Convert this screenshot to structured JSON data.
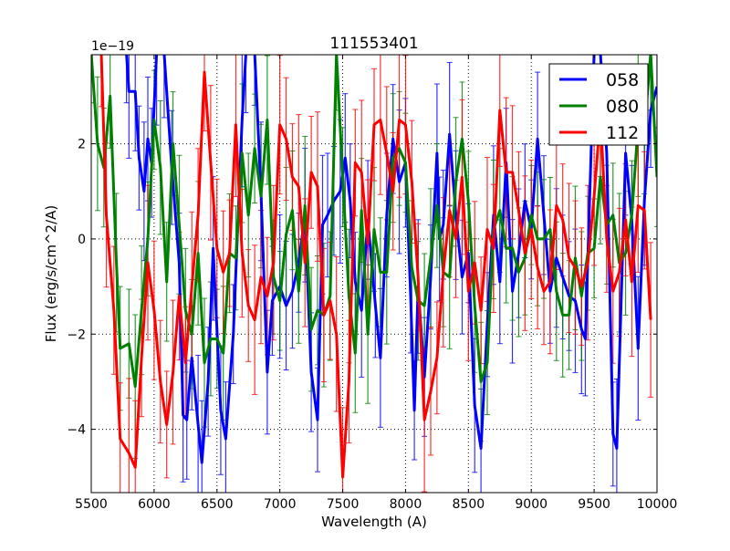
{
  "chart_data": {
    "type": "line",
    "title": "111553401",
    "xlabel": "Wavelength (A)",
    "ylabel": "Flux (erg/s/cm^2/A)",
    "y_offset_label": "1e−19",
    "xlim": [
      5500,
      10000
    ],
    "ylim": [
      -5.33,
      3.87
    ],
    "xticks": [
      "5500",
      "6000",
      "6500",
      "7000",
      "7500",
      "8000",
      "8500",
      "9000",
      "9500",
      "10000"
    ],
    "xtick_values": [
      5500,
      6000,
      6500,
      7000,
      7500,
      8000,
      8500,
      9000,
      9500,
      10000
    ],
    "yticks": [
      "−4",
      "−2",
      "0",
      "2"
    ],
    "ytick_values": [
      -4,
      -2,
      0,
      2
    ],
    "grid": true,
    "legend_position": "top-right",
    "series": [
      {
        "name": "058",
        "color": "#0000ff",
        "yerr": 1.3,
        "x": [
          5780,
          5800,
          5850,
          5880,
          5920,
          5950,
          5980,
          6020,
          6080,
          6140,
          6200,
          6230,
          6260,
          6300,
          6350,
          6380,
          6430,
          6470,
          6530,
          6570,
          6630,
          6700,
          6730,
          6800,
          6850,
          6900,
          6940,
          7000,
          7050,
          7100,
          7150,
          7200,
          7250,
          7300,
          7340,
          7380,
          7430,
          7480,
          7520,
          7560,
          7600,
          7650,
          7700,
          7760,
          7800,
          7850,
          7900,
          7950,
          8000,
          8040,
          8070,
          8100,
          8150,
          8200,
          8250,
          8270,
          8300,
          8350,
          8400,
          8450,
          8500,
          8550,
          8600,
          8650,
          8700,
          8750,
          8800,
          8850,
          8900,
          8950,
          9000,
          9050,
          9100,
          9150,
          9200,
          9250,
          9300,
          9350,
          9400,
          9430,
          9500,
          9550,
          9600,
          9650,
          9680,
          9750,
          9800,
          9850,
          9900,
          9950,
          10000
        ],
        "y": [
          3.9,
          3.1,
          3.1,
          1.7,
          1.0,
          2.1,
          1.6,
          3.9,
          3.9,
          1.5,
          -0.5,
          -3.7,
          -3.8,
          -2.5,
          -3.9,
          -4.7,
          -3.0,
          -0.2,
          -3.6,
          -4.2,
          -2.0,
          2.5,
          3.9,
          3.9,
          1.0,
          -2.8,
          -1.3,
          -1.0,
          -1.4,
          -1.1,
          -0.5,
          0.5,
          -2.8,
          -3.8,
          0.3,
          0.5,
          0.8,
          1.0,
          1.7,
          0.8,
          -0.9,
          -1.5,
          0.4,
          -1.4,
          -2.5,
          0.5,
          2.1,
          1.2,
          1.6,
          -1.2,
          -3.6,
          -1.0,
          -2.9,
          -0.8,
          1.8,
          0.0,
          0.3,
          2.2,
          0.5,
          -0.8,
          -0.3,
          -3.5,
          -4.4,
          -1.8,
          0.5,
          -0.9,
          1.6,
          -1.1,
          -0.3,
          0.8,
          0.2,
          2.1,
          0.5,
          -1.1,
          -0.4,
          -0.8,
          -1.2,
          -1.3,
          -1.9,
          -2.1,
          3.9,
          3.9,
          1.8,
          -4.1,
          -4.4,
          1.8,
          0.4,
          -2.3,
          0.8,
          2.7,
          3.2
        ]
      },
      {
        "name": "080",
        "color": "#008000",
        "yerr": 1.3,
        "x": [
          5500,
          5550,
          5600,
          5650,
          5700,
          5730,
          5800,
          5850,
          5900,
          5950,
          6000,
          6050,
          6100,
          6150,
          6200,
          6250,
          6300,
          6350,
          6400,
          6450,
          6500,
          6550,
          6600,
          6650,
          6700,
          6750,
          6800,
          6850,
          6900,
          6950,
          7000,
          7050,
          7100,
          7150,
          7200,
          7250,
          7300,
          7350,
          7400,
          7450,
          7500,
          7550,
          7600,
          7650,
          7700,
          7750,
          7800,
          7850,
          7900,
          7950,
          8000,
          8050,
          8100,
          8150,
          8200,
          8250,
          8300,
          8350,
          8400,
          8450,
          8500,
          8550,
          8600,
          8650,
          8700,
          8750,
          8800,
          8850,
          8900,
          8950,
          9000,
          9050,
          9100,
          9150,
          9200,
          9250,
          9300,
          9350,
          9400,
          9450,
          9500,
          9550,
          9600,
          9650,
          9700,
          9750,
          9800,
          9850,
          9900,
          9950,
          10000
        ],
        "y": [
          3.9,
          2.0,
          1.5,
          3.0,
          -0.5,
          -2.3,
          -2.2,
          -3.1,
          -1.5,
          0.0,
          2.5,
          1.5,
          -0.9,
          2.0,
          0.3,
          -1.5,
          -2.0,
          -0.3,
          -2.6,
          -2.1,
          -2.1,
          -2.4,
          -0.3,
          -0.4,
          1.8,
          0.5,
          1.9,
          0.9,
          2.5,
          -0.8,
          -1.3,
          0.1,
          0.6,
          -1.1,
          0.7,
          -1.9,
          -1.5,
          -1.6,
          -1.2,
          3.9,
          1.3,
          -1.2,
          -2.4,
          0.6,
          -2.0,
          0.2,
          -0.7,
          -0.7,
          1.7,
          1.9,
          1.6,
          -0.6,
          -1.3,
          -1.4,
          -0.4,
          0.7,
          -0.7,
          -0.8,
          1.2,
          2.1,
          0.8,
          -1.4,
          -3.0,
          -2.6,
          0.2,
          0.6,
          -0.2,
          -0.2,
          -0.7,
          -0.4,
          0.5,
          0.0,
          0.0,
          0.2,
          -1.1,
          -1.6,
          -1.6,
          -0.4,
          -1.2,
          -0.3,
          -0.2,
          1.3,
          0.3,
          0.5,
          -0.5,
          -0.3,
          0.5,
          2.4,
          2.3,
          3.9,
          1.3
        ]
      },
      {
        "name": "112",
        "color": "#ff0000",
        "yerr": 1.4,
        "x": [
          5580,
          5620,
          5680,
          5730,
          5800,
          5850,
          5900,
          5950,
          6000,
          6050,
          6100,
          6150,
          6200,
          6250,
          6300,
          6350,
          6400,
          6450,
          6500,
          6550,
          6600,
          6650,
          6700,
          6750,
          6800,
          6850,
          6900,
          6950,
          7000,
          7050,
          7100,
          7150,
          7200,
          7250,
          7300,
          7350,
          7400,
          7450,
          7500,
          7550,
          7600,
          7650,
          7700,
          7750,
          7800,
          7850,
          7900,
          7950,
          8000,
          8050,
          8100,
          8150,
          8200,
          8250,
          8300,
          8350,
          8400,
          8450,
          8500,
          8550,
          8600,
          8650,
          8700,
          8750,
          8800,
          8850,
          8900,
          8950,
          9000,
          9050,
          9100,
          9150,
          9200,
          9250,
          9300,
          9350,
          9400,
          9450,
          9500,
          9550,
          9600,
          9650,
          9700,
          9750,
          9800,
          9850,
          9900,
          9950
        ],
        "y": [
          3.9,
          0.5,
          -1.5,
          -4.2,
          -4.5,
          -4.8,
          -2.5,
          -0.5,
          -1.5,
          -3.0,
          -3.9,
          -2.8,
          -1.2,
          -2.6,
          -1.0,
          0.5,
          3.5,
          1.6,
          -0.2,
          -0.7,
          -0.3,
          2.4,
          -0.3,
          -1.4,
          -1.7,
          -0.8,
          -1.2,
          -0.5,
          2.4,
          2.1,
          1.3,
          1.1,
          -0.5,
          1.4,
          1.1,
          -1.6,
          -1.3,
          -2.0,
          -5.0,
          -3.0,
          1.6,
          1.4,
          -0.1,
          2.4,
          2.5,
          1.8,
          1.0,
          2.5,
          2.4,
          1.2,
          -0.8,
          -3.8,
          -3.2,
          -2.5,
          -0.7,
          0.6,
          0.0,
          1.3,
          -1.1,
          -0.5,
          -1.5,
          0.2,
          -0.2,
          2.7,
          1.4,
          1.4,
          0.6,
          -0.3,
          0.2,
          -0.6,
          -1.1,
          -0.9,
          0.7,
          0.4,
          -0.4,
          -0.6,
          -1.0,
          -0.5,
          0.9,
          2.6,
          0.0,
          -1.1,
          -0.7,
          0.4,
          -0.9,
          0.7,
          0.6,
          -1.7
        ]
      }
    ]
  }
}
